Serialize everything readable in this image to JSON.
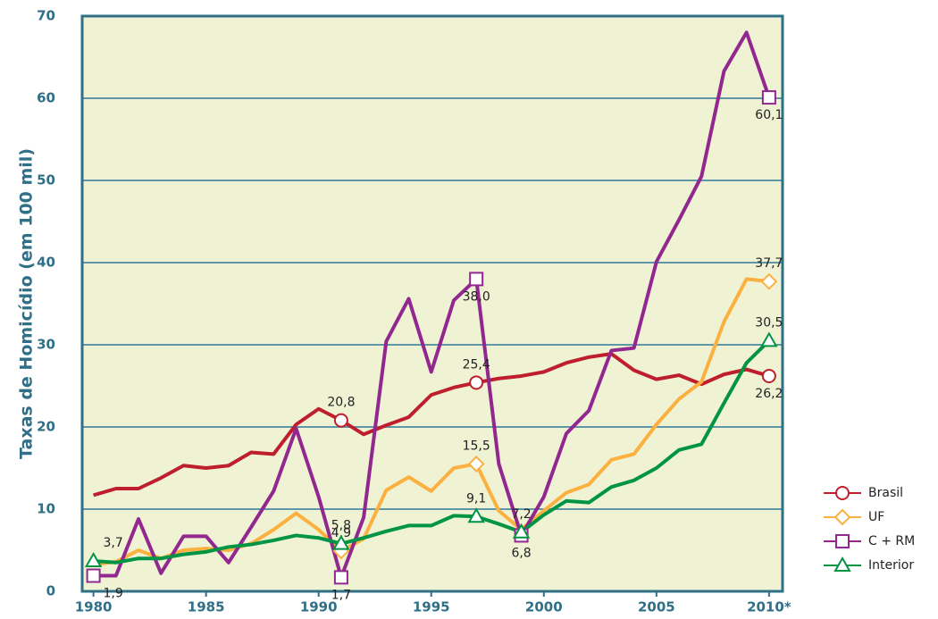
{
  "chart_data": {
    "type": "line",
    "y_label": "Taxas de Homicídio (em 100 mil)",
    "x": [
      1980,
      1981,
      1982,
      1983,
      1984,
      1985,
      1986,
      1987,
      1988,
      1989,
      1990,
      1991,
      1992,
      1993,
      1994,
      1995,
      1996,
      1997,
      1998,
      1999,
      2000,
      2001,
      2002,
      2003,
      2004,
      2005,
      2006,
      2007,
      2008,
      2009,
      2010
    ],
    "xlim": [
      1979.5,
      2010.6
    ],
    "xticks": [
      1980,
      1985,
      1990,
      1995,
      2000,
      2005,
      {
        "value": 2010,
        "label": "2010*"
      }
    ],
    "ylim": [
      0,
      70
    ],
    "yticks": [
      0,
      10,
      20,
      30,
      40,
      50,
      60,
      70
    ],
    "grid": true,
    "legend": "lower right",
    "series": [
      {
        "name": "Brasil",
        "color": "#be1e2d",
        "marker": "circle",
        "values": [
          11.7,
          12.5,
          12.5,
          13.8,
          15.3,
          15.0,
          15.3,
          16.9,
          16.7,
          20.3,
          22.2,
          20.8,
          19.1,
          20.2,
          21.2,
          23.9,
          24.8,
          25.4,
          25.9,
          26.2,
          26.7,
          27.8,
          28.5,
          28.9,
          26.9,
          25.8,
          26.3,
          25.2,
          26.4,
          27.0,
          26.2
        ],
        "value_labels": [
          null,
          null,
          null,
          null,
          null,
          null,
          null,
          null,
          null,
          null,
          null,
          "20,8",
          null,
          null,
          null,
          null,
          null,
          "25,4",
          null,
          null,
          null,
          null,
          null,
          null,
          null,
          null,
          null,
          null,
          null,
          null,
          "26,2"
        ]
      },
      {
        "name": "UF",
        "color": "#fbb040",
        "marker": "diamond",
        "values": [
          3.2,
          3.6,
          5.0,
          4.0,
          5.0,
          5.2,
          5.0,
          5.8,
          7.5,
          9.5,
          7.5,
          4.9,
          6.4,
          12.3,
          13.9,
          12.2,
          15.0,
          15.5,
          9.8,
          7.5,
          9.8,
          12.0,
          13.0,
          16.0,
          16.7,
          20.3,
          23.4,
          25.5,
          32.8,
          38.0,
          37.7
        ],
        "value_labels": [
          null,
          null,
          null,
          null,
          null,
          null,
          null,
          null,
          null,
          null,
          null,
          "4,9",
          null,
          null,
          null,
          null,
          null,
          "15,5",
          null,
          null,
          null,
          null,
          null,
          null,
          null,
          null,
          null,
          null,
          null,
          null,
          "37,7"
        ]
      },
      {
        "name": "C + RM",
        "color": "#92278f",
        "marker": "square",
        "values": [
          1.9,
          1.9,
          8.8,
          2.2,
          6.7,
          6.7,
          3.5,
          7.8,
          12.2,
          19.8,
          11.5,
          1.7,
          9.0,
          30.4,
          35.6,
          26.7,
          35.4,
          38.0,
          15.5,
          6.8,
          11.5,
          19.2,
          22.0,
          29.3,
          29.6,
          40.1,
          45.2,
          50.5,
          63.3,
          68.0,
          60.1
        ],
        "value_labels": [
          "1,9",
          null,
          null,
          null,
          null,
          null,
          null,
          null,
          null,
          null,
          null,
          "1,7",
          null,
          null,
          null,
          null,
          null,
          "38,0",
          null,
          "6,8",
          null,
          null,
          null,
          null,
          null,
          null,
          null,
          null,
          null,
          null,
          "60,1"
        ]
      },
      {
        "name": "Interior",
        "color": "#009444",
        "marker": "triangle",
        "values": [
          3.7,
          3.5,
          4.0,
          4.0,
          4.5,
          4.8,
          5.4,
          5.7,
          6.2,
          6.8,
          6.5,
          5.8,
          6.5,
          7.3,
          8.0,
          8.0,
          9.2,
          9.1,
          8.2,
          7.2,
          9.3,
          11.0,
          10.8,
          12.7,
          13.5,
          15.0,
          17.2,
          17.9,
          22.9,
          27.8,
          30.5
        ],
        "value_labels": [
          "3,7",
          null,
          null,
          null,
          null,
          null,
          null,
          null,
          null,
          null,
          null,
          "5,8",
          null,
          null,
          null,
          null,
          null,
          "9,1",
          null,
          "7,2",
          null,
          null,
          null,
          null,
          null,
          null,
          null,
          null,
          null,
          null,
          "30,5"
        ]
      }
    ]
  }
}
